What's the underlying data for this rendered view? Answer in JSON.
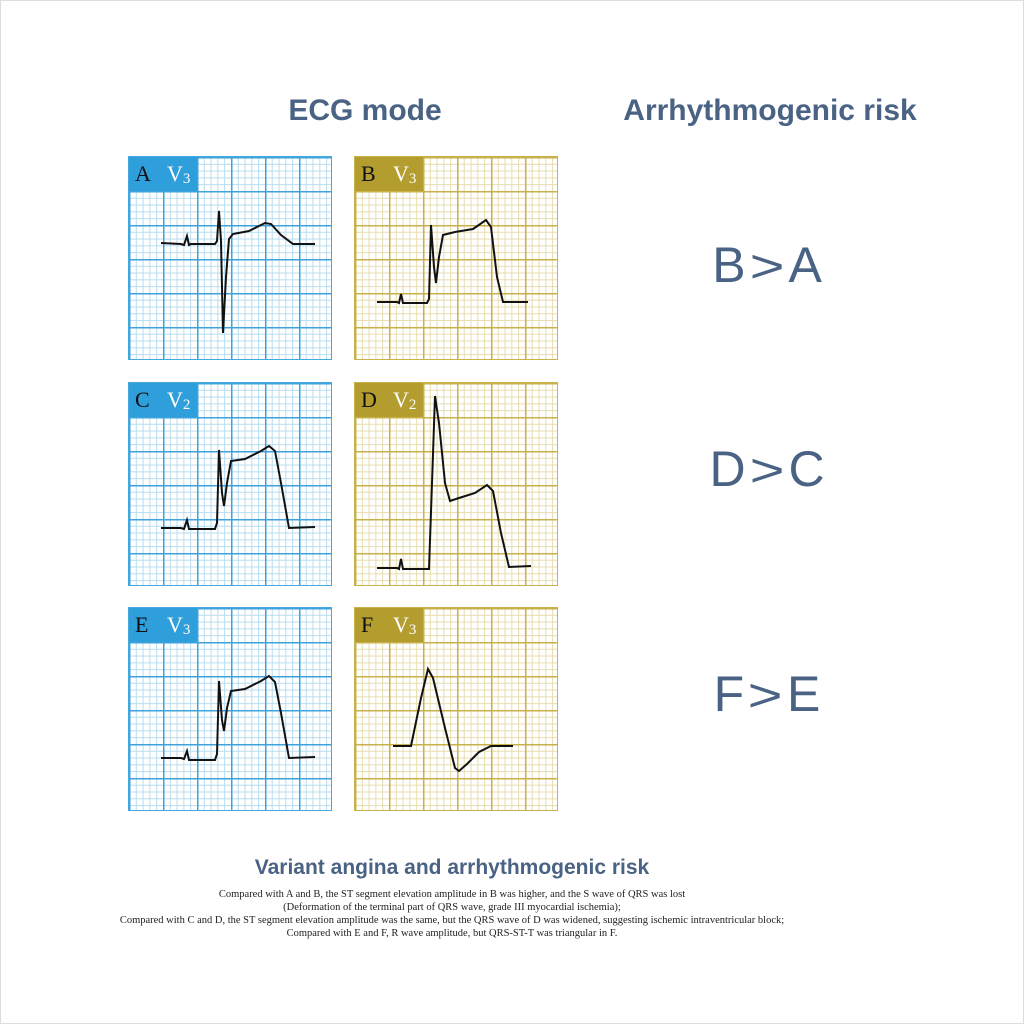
{
  "titles": {
    "ecg_mode": "ECG mode",
    "risk": "Arrhythmogenic risk"
  },
  "panels": [
    {
      "letter": "A",
      "lead": "V",
      "lead_num": "3"
    },
    {
      "letter": "B",
      "lead": "V",
      "lead_num": "3"
    },
    {
      "letter": "C",
      "lead": "V",
      "lead_num": "2"
    },
    {
      "letter": "D",
      "lead": "V",
      "lead_num": "2"
    },
    {
      "letter": "E",
      "lead": "V",
      "lead_num": "3"
    },
    {
      "letter": "F",
      "lead": "V",
      "lead_num": "3"
    }
  ],
  "comparisons": [
    {
      "left": "B",
      "op": ">",
      "right": "A"
    },
    {
      "left": "D",
      "op": ">",
      "right": "C"
    },
    {
      "left": "F",
      "op": ">",
      "right": "E"
    }
  ],
  "caption": {
    "title": "Variant angina and arrhythmogenic risk",
    "lines": [
      "Compared with A and B, the ST segment elevation amplitude in B was higher, and the S wave of QRS was lost",
      "(Deformation of the terminal part of QRS wave, grade III myocardial ischemia);",
      "Compared with C and D, the ST segment elevation amplitude was the same, but the QRS wave of  D was widened, suggesting ischemic intraventricular block;",
      "Compared with E and F, R wave amplitude, but QRS-ST-T was triangular in F."
    ]
  },
  "colors": {
    "blue": "#2f9fdb",
    "yellow": "#b39d2f",
    "title": "#4a6283"
  }
}
